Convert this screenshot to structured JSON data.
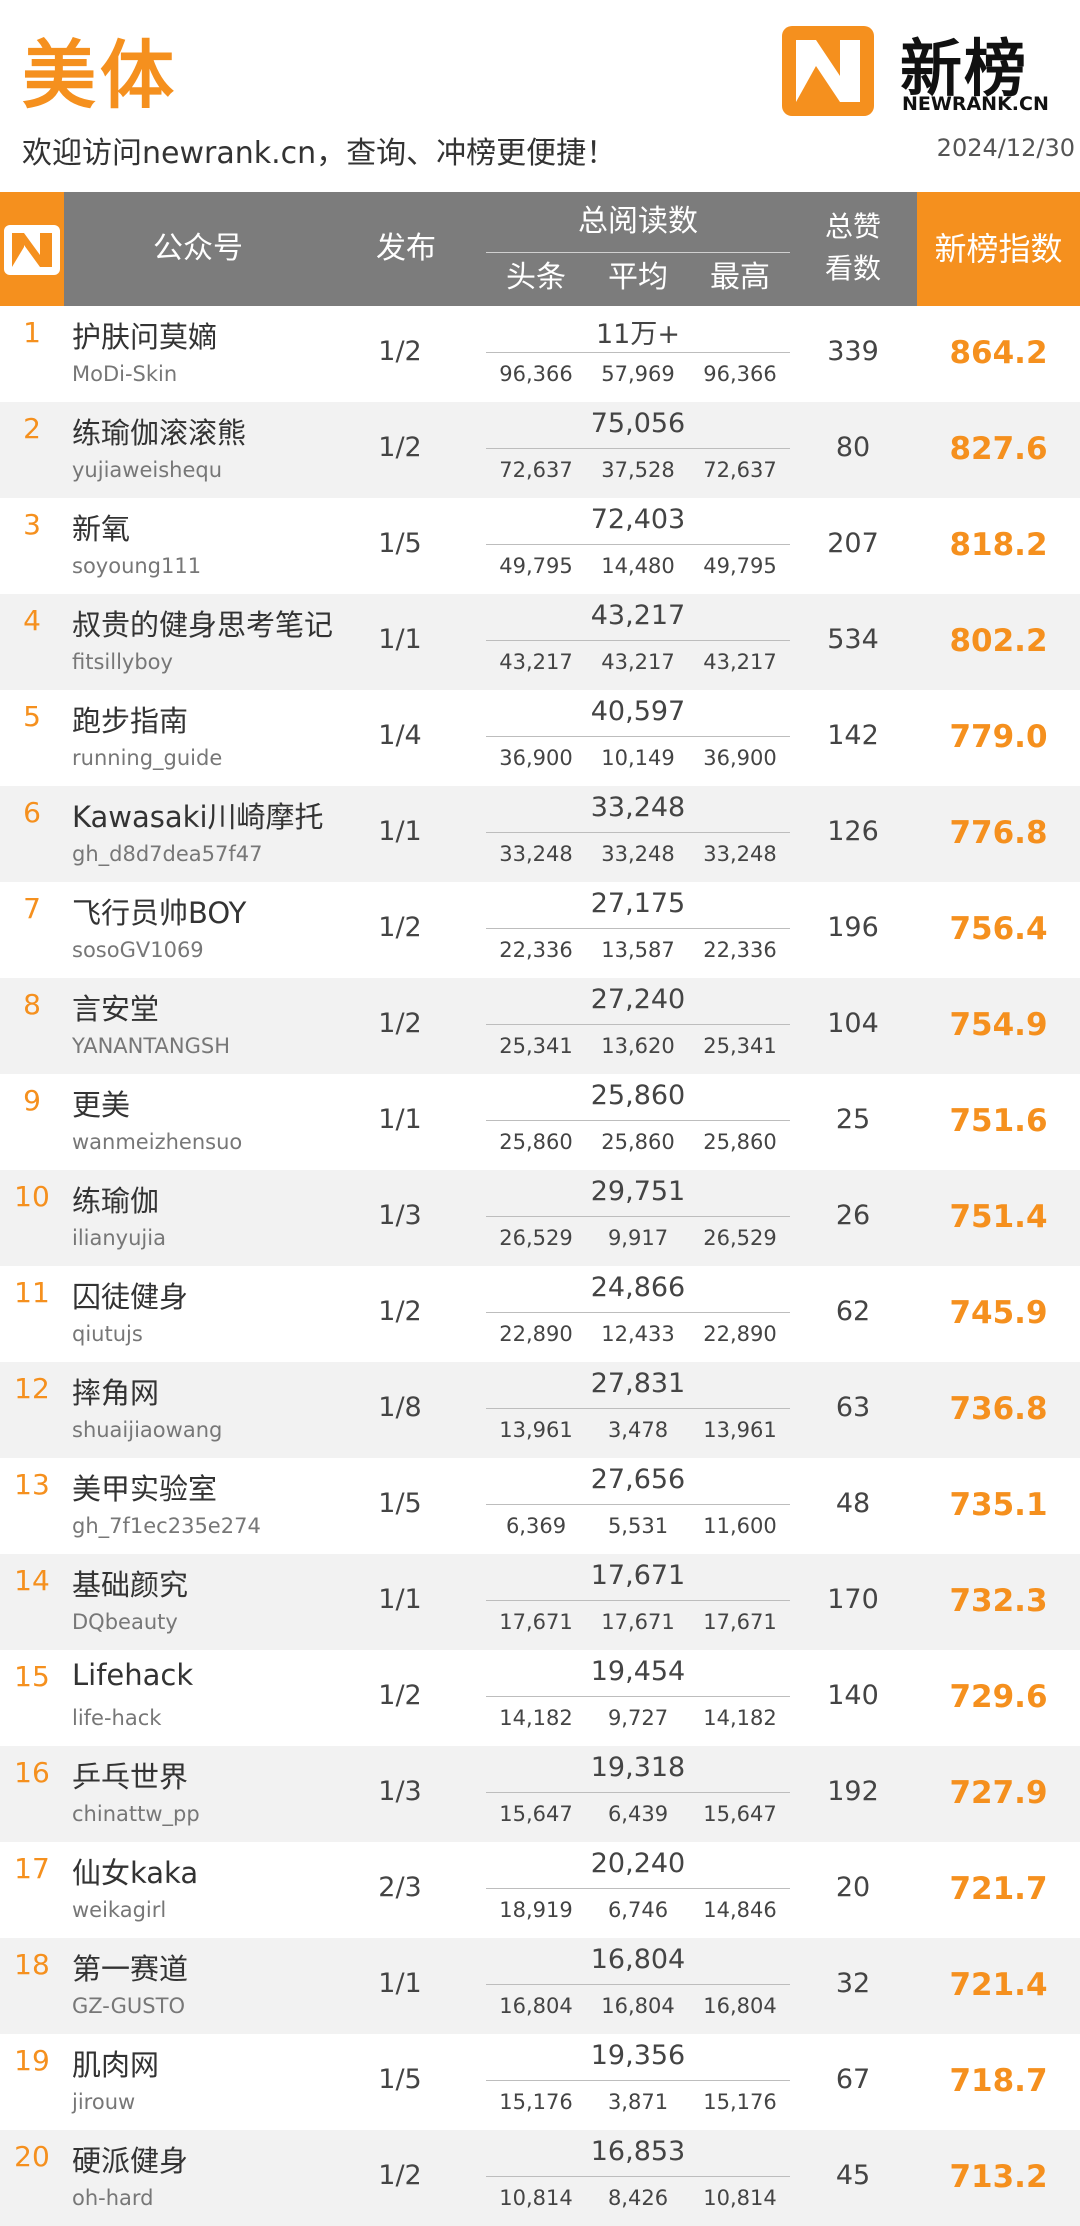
{
  "header": {
    "title": "美体",
    "subtitle": "欢迎访问newrank.cn，查询、冲榜更便捷！",
    "date": "2024/12/30",
    "logo_cn": "新榜",
    "logo_en": "NEWRANK.CN"
  },
  "columns": {
    "account": "公众号",
    "publish": "发布",
    "reads": "总阅读数",
    "headline": "头条",
    "average": "平均",
    "max": "最高",
    "likes_line1": "总赞",
    "likes_line2": "看数",
    "index": "新榜指数"
  },
  "colors": {
    "accent": "#f5901e",
    "header_gray": "#7c7c7c",
    "row_alt": "#f2f2f2"
  },
  "rows": [
    {
      "rank": "1",
      "name": "护肤问莫嫡",
      "account": "MoDi-Skin",
      "publish": "1/2",
      "total_reads": "11万+",
      "headline": "96,366",
      "average": "57,969",
      "max": "96,366",
      "likes": "339",
      "index": "864.2"
    },
    {
      "rank": "2",
      "name": "练瑜伽滚滚熊",
      "account": "yujiaweishequ",
      "publish": "1/2",
      "total_reads": "75,056",
      "headline": "72,637",
      "average": "37,528",
      "max": "72,637",
      "likes": "80",
      "index": "827.6"
    },
    {
      "rank": "3",
      "name": "新氧",
      "account": "soyoung111",
      "publish": "1/5",
      "total_reads": "72,403",
      "headline": "49,795",
      "average": "14,480",
      "max": "49,795",
      "likes": "207",
      "index": "818.2"
    },
    {
      "rank": "4",
      "name": "叔贵的健身思考笔记",
      "account": "fitsillyboy",
      "publish": "1/1",
      "total_reads": "43,217",
      "headline": "43,217",
      "average": "43,217",
      "max": "43,217",
      "likes": "534",
      "index": "802.2"
    },
    {
      "rank": "5",
      "name": "跑步指南",
      "account": "running_guide",
      "publish": "1/4",
      "total_reads": "40,597",
      "headline": "36,900",
      "average": "10,149",
      "max": "36,900",
      "likes": "142",
      "index": "779.0"
    },
    {
      "rank": "6",
      "name": "Kawasaki川崎摩托",
      "account": "gh_d8d7dea57f47",
      "publish": "1/1",
      "total_reads": "33,248",
      "headline": "33,248",
      "average": "33,248",
      "max": "33,248",
      "likes": "126",
      "index": "776.8"
    },
    {
      "rank": "7",
      "name": "飞行员帅BOY",
      "account": "sosoGV1069",
      "publish": "1/2",
      "total_reads": "27,175",
      "headline": "22,336",
      "average": "13,587",
      "max": "22,336",
      "likes": "196",
      "index": "756.4"
    },
    {
      "rank": "8",
      "name": "言安堂",
      "account": "YANANTANGSH",
      "publish": "1/2",
      "total_reads": "27,240",
      "headline": "25,341",
      "average": "13,620",
      "max": "25,341",
      "likes": "104",
      "index": "754.9"
    },
    {
      "rank": "9",
      "name": "更美",
      "account": "wanmeizhensuo",
      "publish": "1/1",
      "total_reads": "25,860",
      "headline": "25,860",
      "average": "25,860",
      "max": "25,860",
      "likes": "25",
      "index": "751.6"
    },
    {
      "rank": "10",
      "name": "练瑜伽",
      "account": "ilianyujia",
      "publish": "1/3",
      "total_reads": "29,751",
      "headline": "26,529",
      "average": "9,917",
      "max": "26,529",
      "likes": "26",
      "index": "751.4"
    },
    {
      "rank": "11",
      "name": "囚徒健身",
      "account": "qiutujs",
      "publish": "1/2",
      "total_reads": "24,866",
      "headline": "22,890",
      "average": "12,433",
      "max": "22,890",
      "likes": "62",
      "index": "745.9"
    },
    {
      "rank": "12",
      "name": "摔角网",
      "account": "shuaijiaowang",
      "publish": "1/8",
      "total_reads": "27,831",
      "headline": "13,961",
      "average": "3,478",
      "max": "13,961",
      "likes": "63",
      "index": "736.8"
    },
    {
      "rank": "13",
      "name": "美甲实验室",
      "account": "gh_7f1ec235e274",
      "publish": "1/5",
      "total_reads": "27,656",
      "headline": "6,369",
      "average": "5,531",
      "max": "11,600",
      "likes": "48",
      "index": "735.1"
    },
    {
      "rank": "14",
      "name": "基础颜究",
      "account": "DQbeauty",
      "publish": "1/1",
      "total_reads": "17,671",
      "headline": "17,671",
      "average": "17,671",
      "max": "17,671",
      "likes": "170",
      "index": "732.3"
    },
    {
      "rank": "15",
      "name": "Lifehack",
      "account": "life-hack",
      "publish": "1/2",
      "total_reads": "19,454",
      "headline": "14,182",
      "average": "9,727",
      "max": "14,182",
      "likes": "140",
      "index": "729.6"
    },
    {
      "rank": "16",
      "name": "乒乓世界",
      "account": "chinattw_pp",
      "publish": "1/3",
      "total_reads": "19,318",
      "headline": "15,647",
      "average": "6,439",
      "max": "15,647",
      "likes": "192",
      "index": "727.9"
    },
    {
      "rank": "17",
      "name": "仙女kaka",
      "account": "weikagirl",
      "publish": "2/3",
      "total_reads": "20,240",
      "headline": "18,919",
      "average": "6,746",
      "max": "14,846",
      "likes": "20",
      "index": "721.7"
    },
    {
      "rank": "18",
      "name": "第一赛道",
      "account": "GZ-GUSTO",
      "publish": "1/1",
      "total_reads": "16,804",
      "headline": "16,804",
      "average": "16,804",
      "max": "16,804",
      "likes": "32",
      "index": "721.4"
    },
    {
      "rank": "19",
      "name": "肌肉网",
      "account": "jirouw",
      "publish": "1/5",
      "total_reads": "19,356",
      "headline": "15,176",
      "average": "3,871",
      "max": "15,176",
      "likes": "67",
      "index": "718.7"
    },
    {
      "rank": "20",
      "name": "硬派健身",
      "account": "oh-hard",
      "publish": "1/2",
      "total_reads": "16,853",
      "headline": "10,814",
      "average": "8,426",
      "max": "10,814",
      "likes": "45",
      "index": "713.2"
    }
  ]
}
